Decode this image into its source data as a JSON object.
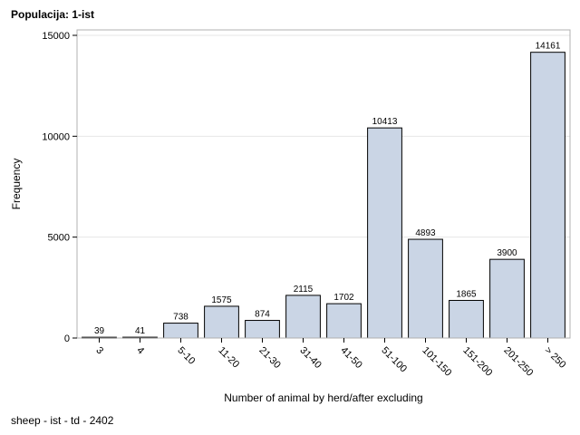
{
  "page": {
    "title": "Populacija: 1-ist",
    "footer": "sheep - ist - td - 2402"
  },
  "chart_data": {
    "type": "bar",
    "title": "Populacija: 1-ist",
    "xlabel": "Number of animal by herd/after excluding",
    "ylabel": "Frequency",
    "categories": [
      "3",
      "4",
      "5-10",
      "11-20",
      "21-30",
      "31-40",
      "41-50",
      "51-100",
      "101-150",
      "151-200",
      "201-250",
      "> 250"
    ],
    "values": [
      39,
      41,
      738,
      1575,
      874,
      2115,
      1702,
      10413,
      4893,
      1865,
      3900,
      14161
    ],
    "ylim": [
      0,
      15000
    ],
    "yticks": [
      0,
      5000,
      10000,
      15000
    ],
    "grid": true,
    "bar_color": "#cad5e5",
    "bar_edge_color": "#000000",
    "grid_color": "#e6e6e6"
  }
}
